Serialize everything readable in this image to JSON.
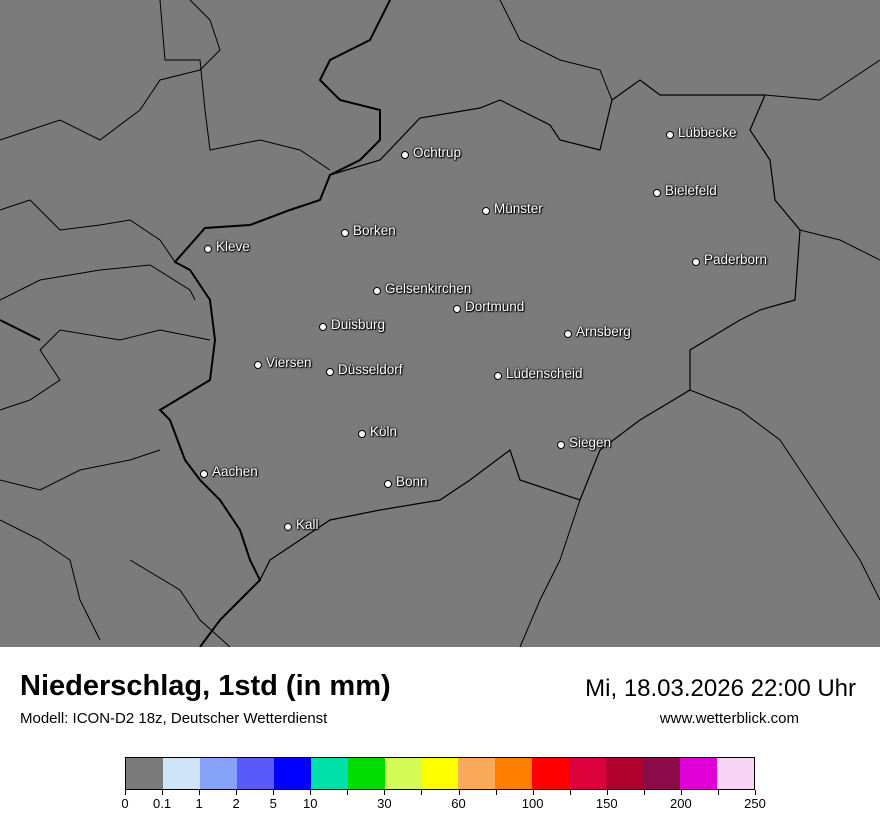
{
  "header": {
    "title": "Niederschlag, 1std (in mm)",
    "subtitle": "Modell: ICON-D2 18z, Deutscher Wetterdienst",
    "datetime": "Mi, 18.03.2026 22:00 Uhr",
    "website": "www.wetterblick.com"
  },
  "map": {
    "background_color": "#7b7b7b",
    "cities": [
      "Lübbecke",
      "Ochtrup",
      "Bielefeld",
      "Münster",
      "Borken",
      "Kleve",
      "Paderborn",
      "Gelsenkirchen",
      "Dortmund",
      "Duisburg",
      "Arnsberg",
      "Viersen",
      "Düsseldorf",
      "Lüdenscheid",
      "Köln",
      "Siegen",
      "Aachen",
      "Bonn",
      "Kall"
    ]
  },
  "legend": {
    "colors": [
      "#7b7b7b",
      "#d0e4f8",
      "#86a1f8",
      "#5a5af8",
      "#0000ff",
      "#00e0a8",
      "#00dc00",
      "#d4fa55",
      "#ffff00",
      "#fbaa5a",
      "#ff7e00",
      "#ff0000",
      "#dc003c",
      "#b0002c",
      "#8c0c4a",
      "#e000d8",
      "#f8d4f4"
    ],
    "ticks": [
      "0",
      "0.1",
      "1",
      "2",
      "5",
      "10",
      "",
      "30",
      "",
      "60",
      "",
      "100",
      "",
      "150",
      "",
      "200",
      "",
      "250"
    ]
  }
}
